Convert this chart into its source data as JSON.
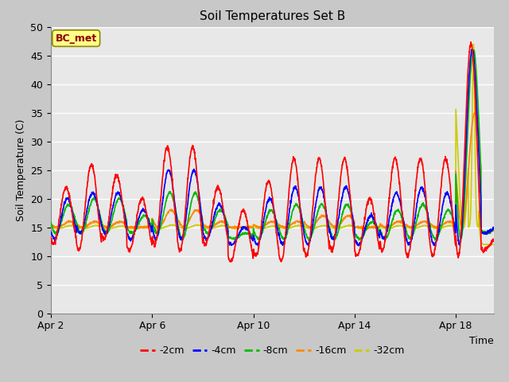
{
  "title": "Soil Temperatures Set B",
  "xlabel": "Time",
  "ylabel": "Soil Temperature (C)",
  "ylim": [
    0,
    50
  ],
  "yticks": [
    0,
    5,
    10,
    15,
    20,
    25,
    30,
    35,
    40,
    45,
    50
  ],
  "fig_bg": "#c8c8c8",
  "plot_bg": "#e8e8e8",
  "annotation_text": "BC_met",
  "annotation_color": "#8B0000",
  "annotation_bg": "#ffff88",
  "annotation_edge": "#888800",
  "series_colors": {
    "-2cm": "#ff0000",
    "-4cm": "#0000ff",
    "-8cm": "#00bb00",
    "-16cm": "#ff8800",
    "-32cm": "#cccc00"
  },
  "legend_labels": [
    "-2cm",
    "-4cm",
    "-8cm",
    "-16cm",
    "-32cm"
  ],
  "xtick_labels": [
    "Apr 2",
    "Apr 6",
    "Apr 10",
    "Apr 14",
    "Apr 18"
  ],
  "xtick_positions": [
    2,
    6,
    10,
    14,
    18
  ],
  "xlim": [
    2,
    19.5
  ]
}
